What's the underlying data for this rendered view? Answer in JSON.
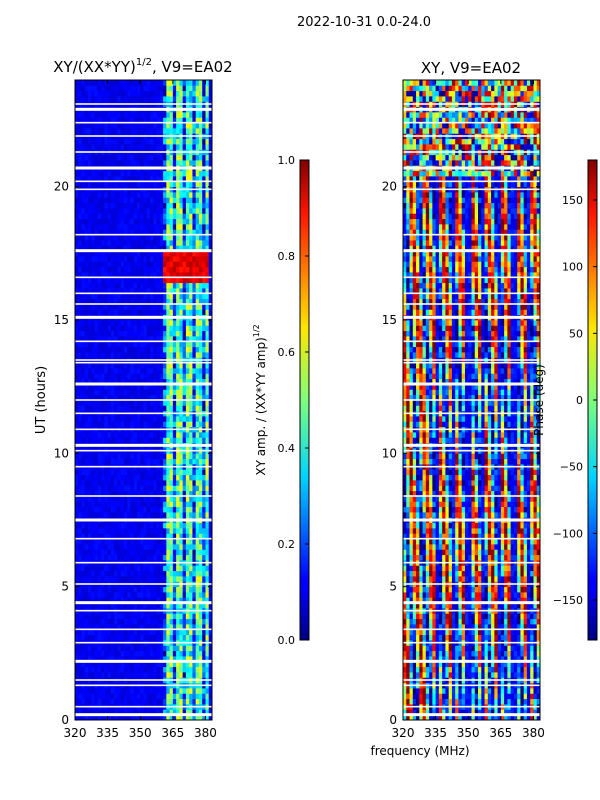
{
  "chart_data": [
    {
      "type": "heatmap",
      "title": "XY/(XX*YY)",
      "title_sup": "1/2",
      "title_suffix": ", V9=EA02",
      "xlabel": "",
      "ylabel": "UT (hours)",
      "xlim": [
        320,
        383
      ],
      "ylim": [
        0,
        24
      ],
      "xticks": [
        320,
        335,
        350,
        365,
        380
      ],
      "yticks": [
        0,
        5,
        10,
        15,
        20
      ],
      "colormap": "jet",
      "colorbar": {
        "label": "XY amp. / (XX*YY amp)",
        "label_sup": "1/2",
        "range": [
          0.0,
          1.0
        ],
        "ticks": [
          "0.0",
          "0.2",
          "0.4",
          "0.6",
          "0.8",
          "1.0"
        ]
      },
      "features": {
        "background_value": 0.08,
        "high_band_freq": [
          361,
          381
        ],
        "high_band_value": 0.45,
        "bright_ut_range": [
          16.5,
          17.5
        ],
        "bright_value": 0.85
      }
    },
    {
      "type": "heatmap",
      "title": "XY, V9=EA02",
      "xlabel": "frequency (MHz)",
      "ylabel": "",
      "xlim": [
        320,
        383
      ],
      "ylim": [
        0,
        24
      ],
      "xticks": [
        320,
        335,
        350,
        365,
        380
      ],
      "yticks": [
        0,
        5,
        10,
        15,
        20
      ],
      "colormap": "jet",
      "colorbar": {
        "label": "Phase (deg)",
        "range": [
          -180,
          180
        ],
        "ticks": [
          "−150",
          "−100",
          "−50",
          "0",
          "50",
          "100",
          "150"
        ]
      },
      "features": {
        "noisy_ut_range": [
          20.5,
          24
        ],
        "stripe_freqs": [
          336,
          343,
          350,
          357,
          364,
          371,
          378
        ]
      }
    }
  ],
  "header": {
    "date_range": "2022-10-31 0.0-24.0"
  },
  "colors": {
    "background": "#ffffff",
    "axis": "#000000"
  }
}
